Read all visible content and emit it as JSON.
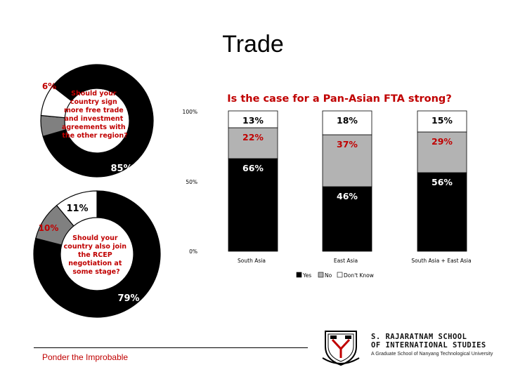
{
  "slide": {
    "title": "Trade",
    "footer": "Ponder the Improbable",
    "school_line1": "S. RAJARATNAM SCHOOL",
    "school_line2": "OF INTERNATIONAL STUDIES",
    "school_line3": "A Graduate School of Nanyang Technological University"
  },
  "chart_data": [
    {
      "type": "pie",
      "title": "",
      "center_text": "Should your country sign more free trade and investment agreements with the other region?",
      "slices": [
        {
          "label": "85%",
          "value": 85,
          "color": "#000000"
        },
        {
          "label": "6%",
          "value": 6,
          "color": "#808080"
        },
        {
          "label": "9%",
          "value": 9,
          "color": "#ffffff"
        }
      ]
    },
    {
      "type": "pie",
      "title": "",
      "center_text": "Should your country also join the RCEP negotiation at some stage?",
      "slices": [
        {
          "label": "79%",
          "value": 79,
          "color": "#000000"
        },
        {
          "label": "10%",
          "value": 10,
          "color": "#808080"
        },
        {
          "label": "11%",
          "value": 11,
          "color": "#ffffff"
        }
      ]
    },
    {
      "type": "bar",
      "stacked": true,
      "title": "Is the case for a Pan-Asian FTA strong?",
      "categories": [
        "South Asia",
        "East Asia",
        "South Asia + East Asia"
      ],
      "y_ticks": [
        "0%",
        "50%",
        "100%"
      ],
      "ylim": [
        0,
        100
      ],
      "legend_position": "bottom",
      "series": [
        {
          "name": "Yes",
          "values": [
            66,
            46,
            56
          ],
          "labels": [
            "66%",
            "46%",
            "56%"
          ],
          "color": "#000000"
        },
        {
          "name": "No",
          "values": [
            22,
            37,
            29
          ],
          "labels": [
            "22%",
            "37%",
            "29%"
          ],
          "color": "#b3b3b3"
        },
        {
          "name": "Don't Know",
          "values": [
            13,
            18,
            15
          ],
          "labels": [
            "13%",
            "18%",
            "15%"
          ],
          "color": "#ffffff"
        }
      ]
    }
  ]
}
